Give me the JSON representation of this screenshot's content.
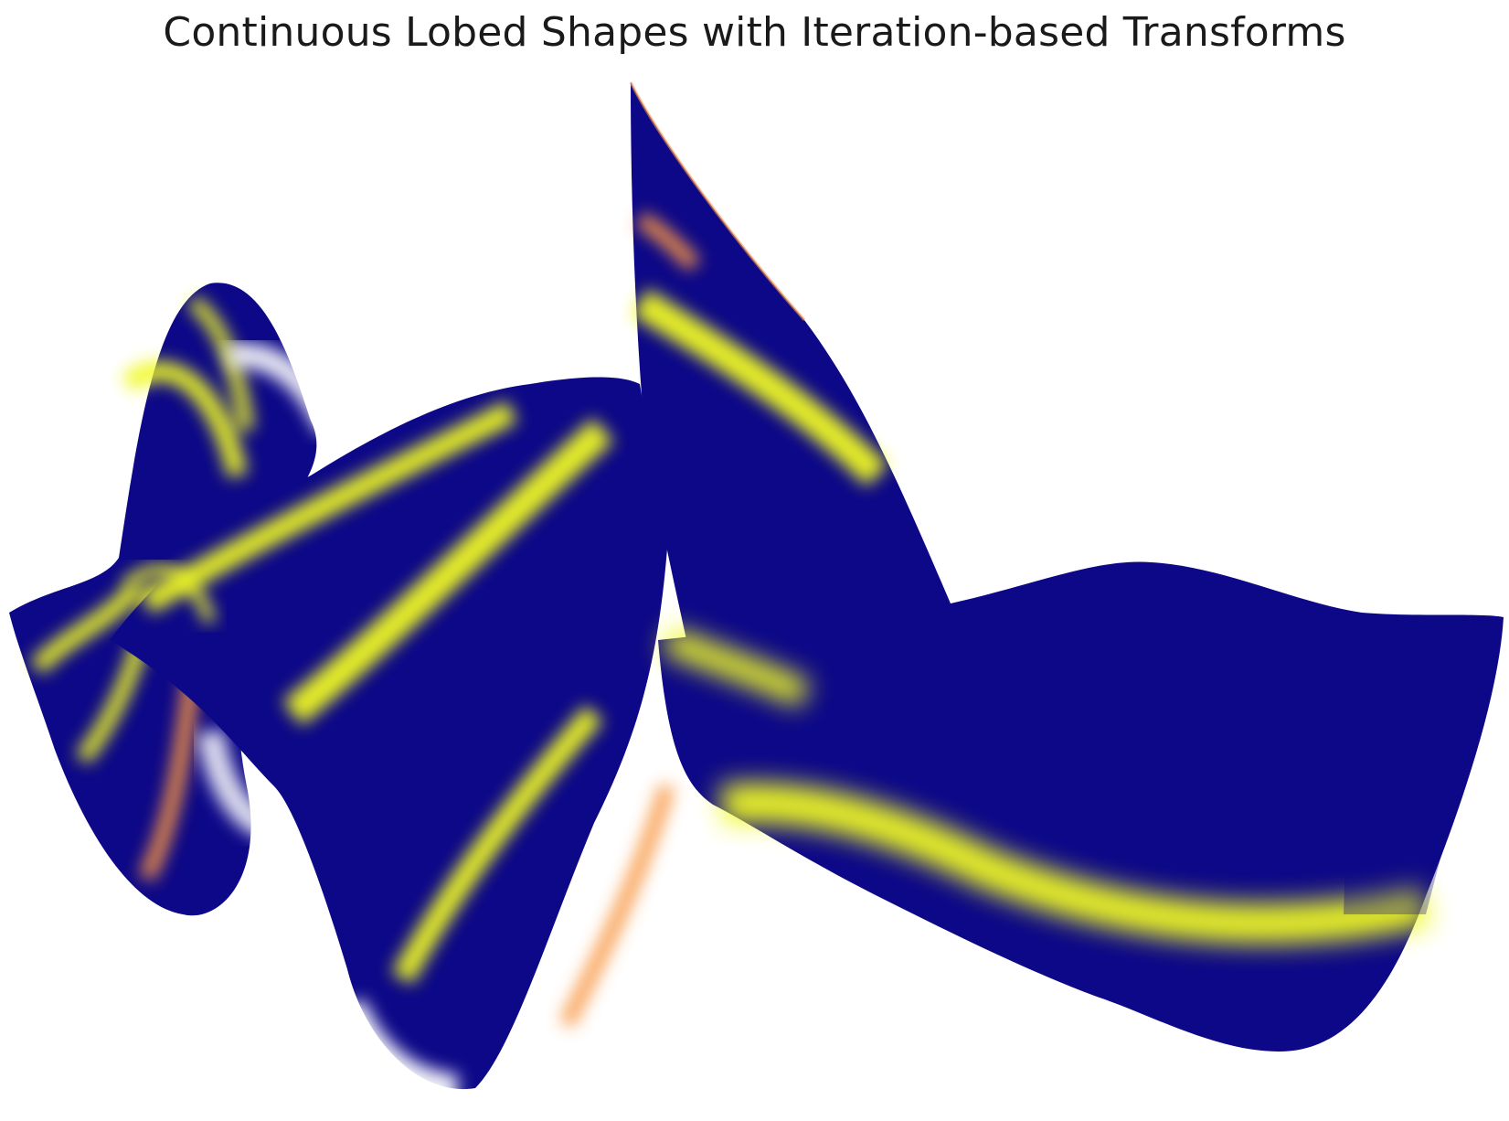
{
  "figure": {
    "title": "Continuous Lobed Shapes with Iteration-based Transforms"
  },
  "palette": {
    "base": "#0d0887",
    "mid": "#7e03a8",
    "warm": "#f89540",
    "bright": "#f0f921",
    "background": "#ffffff"
  }
}
